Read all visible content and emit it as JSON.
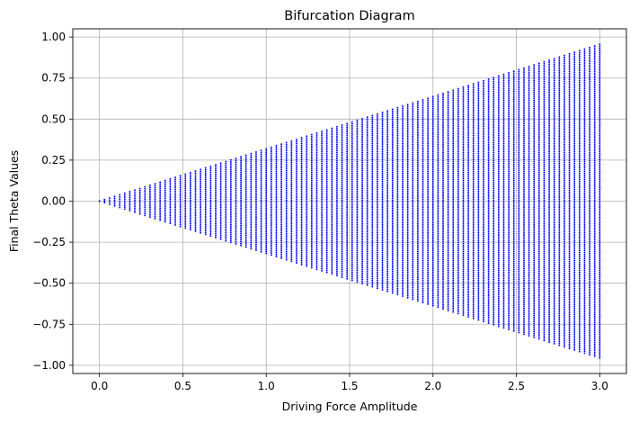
{
  "chart_data": {
    "type": "scatter",
    "title": "Bifurcation Diagram",
    "xlabel": "Driving Force Amplitude",
    "ylabel": "Final Theta Values",
    "xlim": [
      -0.16,
      3.16
    ],
    "ylim": [
      -1.05,
      1.05
    ],
    "xticks": [
      0.0,
      0.5,
      1.0,
      1.5,
      2.0,
      2.5,
      3.0
    ],
    "xtick_labels": [
      "0.0",
      "0.5",
      "1.0",
      "1.5",
      "2.0",
      "2.5",
      "3.0"
    ],
    "yticks": [
      -1.0,
      -0.75,
      -0.5,
      -0.25,
      0.0,
      0.25,
      0.5,
      0.75,
      1.0
    ],
    "ytick_labels": [
      "−1.00",
      "−0.75",
      "−0.50",
      "−0.25",
      "0.00",
      "0.25",
      "0.50",
      "0.75",
      "1.00"
    ],
    "grid": true,
    "marker_color": "#0000ff",
    "envelope": {
      "x_start": 0.0,
      "x_end": 3.0,
      "theta_max_at_x_end": 0.955,
      "theta_min_at_x_end": -0.955
    },
    "series": [
      {
        "values_description_free": true,
        "x_count": 100,
        "x_range": [
          0.0,
          3.0
        ]
      }
    ]
  }
}
